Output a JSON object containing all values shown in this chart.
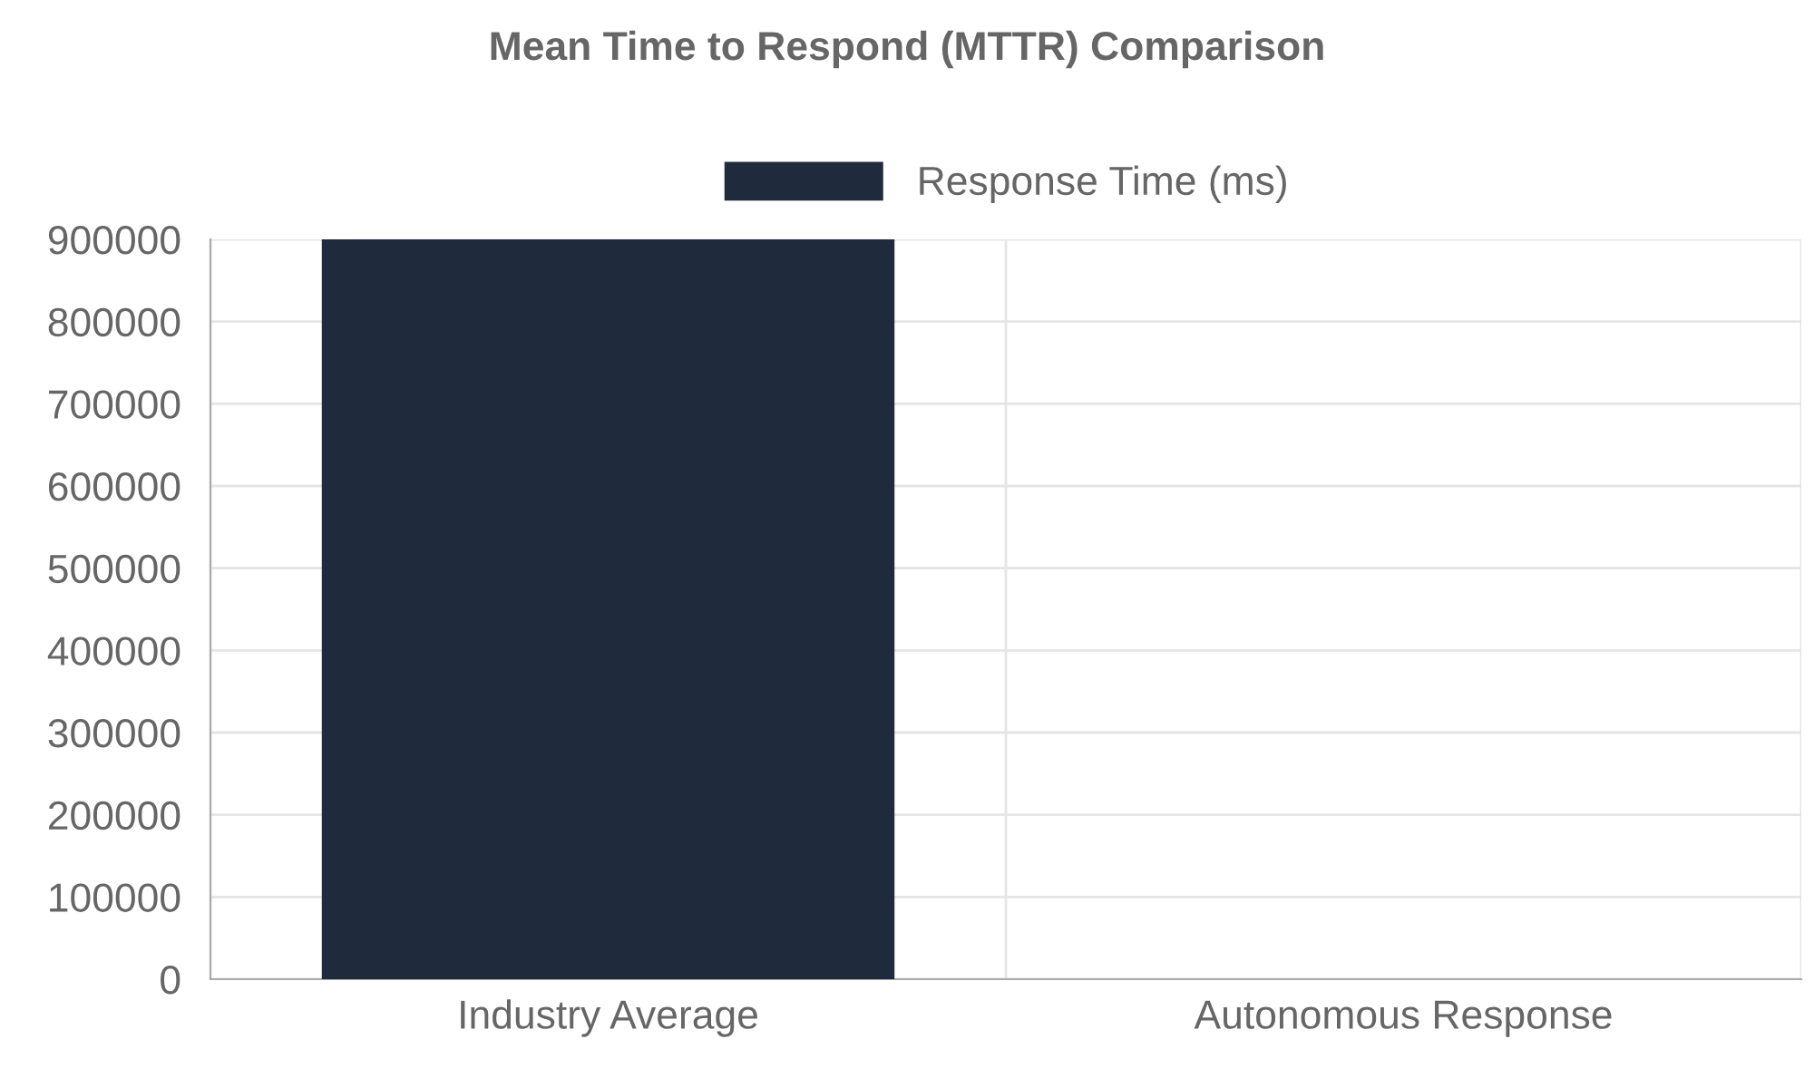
{
  "chart_data": {
    "type": "bar",
    "title": "Mean Time to Respond (MTTR) Comparison",
    "categories": [
      "Industry Average",
      "Autonomous Response"
    ],
    "series": [
      {
        "name": "Response Time (ms)",
        "color": "#1f2a3c",
        "values": [
          900000,
          0
        ]
      }
    ],
    "ylim": [
      0,
      900000
    ],
    "yticks": [
      0,
      100000,
      200000,
      300000,
      400000,
      500000,
      600000,
      700000,
      800000,
      900000
    ],
    "grid": true,
    "legend": "top"
  }
}
